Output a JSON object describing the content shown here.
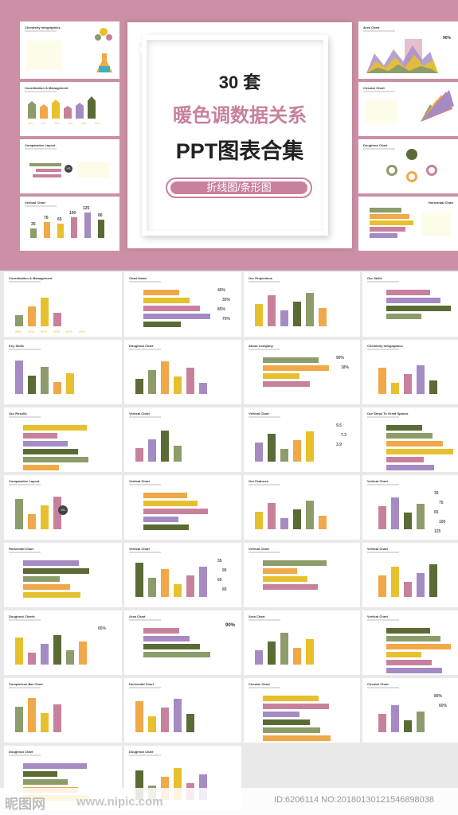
{
  "hero": {
    "count": "30 套",
    "title_line1": "暖色调数据关系",
    "title_line2": "PPT图表合集",
    "subtitle": "折线图/条形图"
  },
  "watermark": {
    "logo": "昵图网",
    "url": "www.nipic.com",
    "id_text": "ID:6206114 NO:20180130121546898038"
  },
  "colors": {
    "background": "#cc8fa6",
    "pink": "#c8819c",
    "olive": "#8c9c6a",
    "orange": "#f0a848",
    "yellow": "#e7c02e",
    "purple": "#a58bc3",
    "dark_olive": "#5a6b35"
  },
  "top_left_slides": [
    {
      "title": "Chemistry Infographics"
    },
    {
      "title": "Coordination & Management",
      "labels": [
        "50%",
        "40%",
        "55%",
        "20%",
        "65%",
        "90%"
      ]
    },
    {
      "title": "Comparative Layout",
      "badge": "VS"
    },
    {
      "title": "Vertical Chart",
      "values": [
        "35",
        "75",
        "65",
        "100",
        "125",
        "80"
      ]
    }
  ],
  "top_right_slides": [
    {
      "title": "Area Chart",
      "stat": "90%"
    },
    {
      "title": "Circular Chart"
    },
    {
      "title": "Doughnut Chart"
    },
    {
      "title": "Horizontal Chart"
    }
  ],
  "grid_slides": [
    {
      "title": "Coordination & Management",
      "labels": [
        "50%",
        "40%",
        "55%",
        "20%",
        "65%",
        "90%"
      ]
    },
    {
      "title": "Chart Name",
      "values": [
        "40%",
        "35%",
        "85%",
        "70%"
      ]
    },
    {
      "title": "Our Projections"
    },
    {
      "title": "Our Skills"
    },
    {
      "title": "Key Skills"
    },
    {
      "title": "Doughnut Chart"
    },
    {
      "title": "About Company",
      "values": [
        "90%",
        "18%"
      ]
    },
    {
      "title": "Chemistry Infographics"
    },
    {
      "title": "Our Results"
    },
    {
      "title": "Vertical Chart"
    },
    {
      "title": "Vertical Chart",
      "values": [
        "9.5",
        "7.3",
        "3.9"
      ]
    },
    {
      "title": "Our Steps To Great Spaces"
    },
    {
      "title": "Comparative Layout",
      "badge": "VS"
    },
    {
      "title": "Vertical Chart"
    },
    {
      "title": "Our Features"
    },
    {
      "title": "Vertical Chart",
      "values": [
        "35",
        "75",
        "65",
        "100",
        "125"
      ]
    },
    {
      "title": "Horizontal Chart"
    },
    {
      "title": "Vertical Chart",
      "values": [
        "35",
        "95",
        "60",
        "85"
      ]
    },
    {
      "title": "Vertical Chart"
    },
    {
      "title": "Vertical Chart"
    },
    {
      "title": "Doughnut Charts",
      "values": [
        "65%"
      ]
    },
    {
      "title": "Area Chart",
      "stat": "90%"
    },
    {
      "title": "Area Chart"
    },
    {
      "title": "Vertical Chart"
    },
    {
      "title": "Comparison Bar Chart"
    },
    {
      "title": "Horizontal Chart"
    },
    {
      "title": "Circular Chart"
    },
    {
      "title": "Circular Chart",
      "values": [
        "80%",
        "60%"
      ]
    },
    {
      "title": "Doughnut Chart"
    },
    {
      "title": "Doughnut Chart",
      "labels": [
        "01",
        "02",
        "03"
      ]
    }
  ]
}
